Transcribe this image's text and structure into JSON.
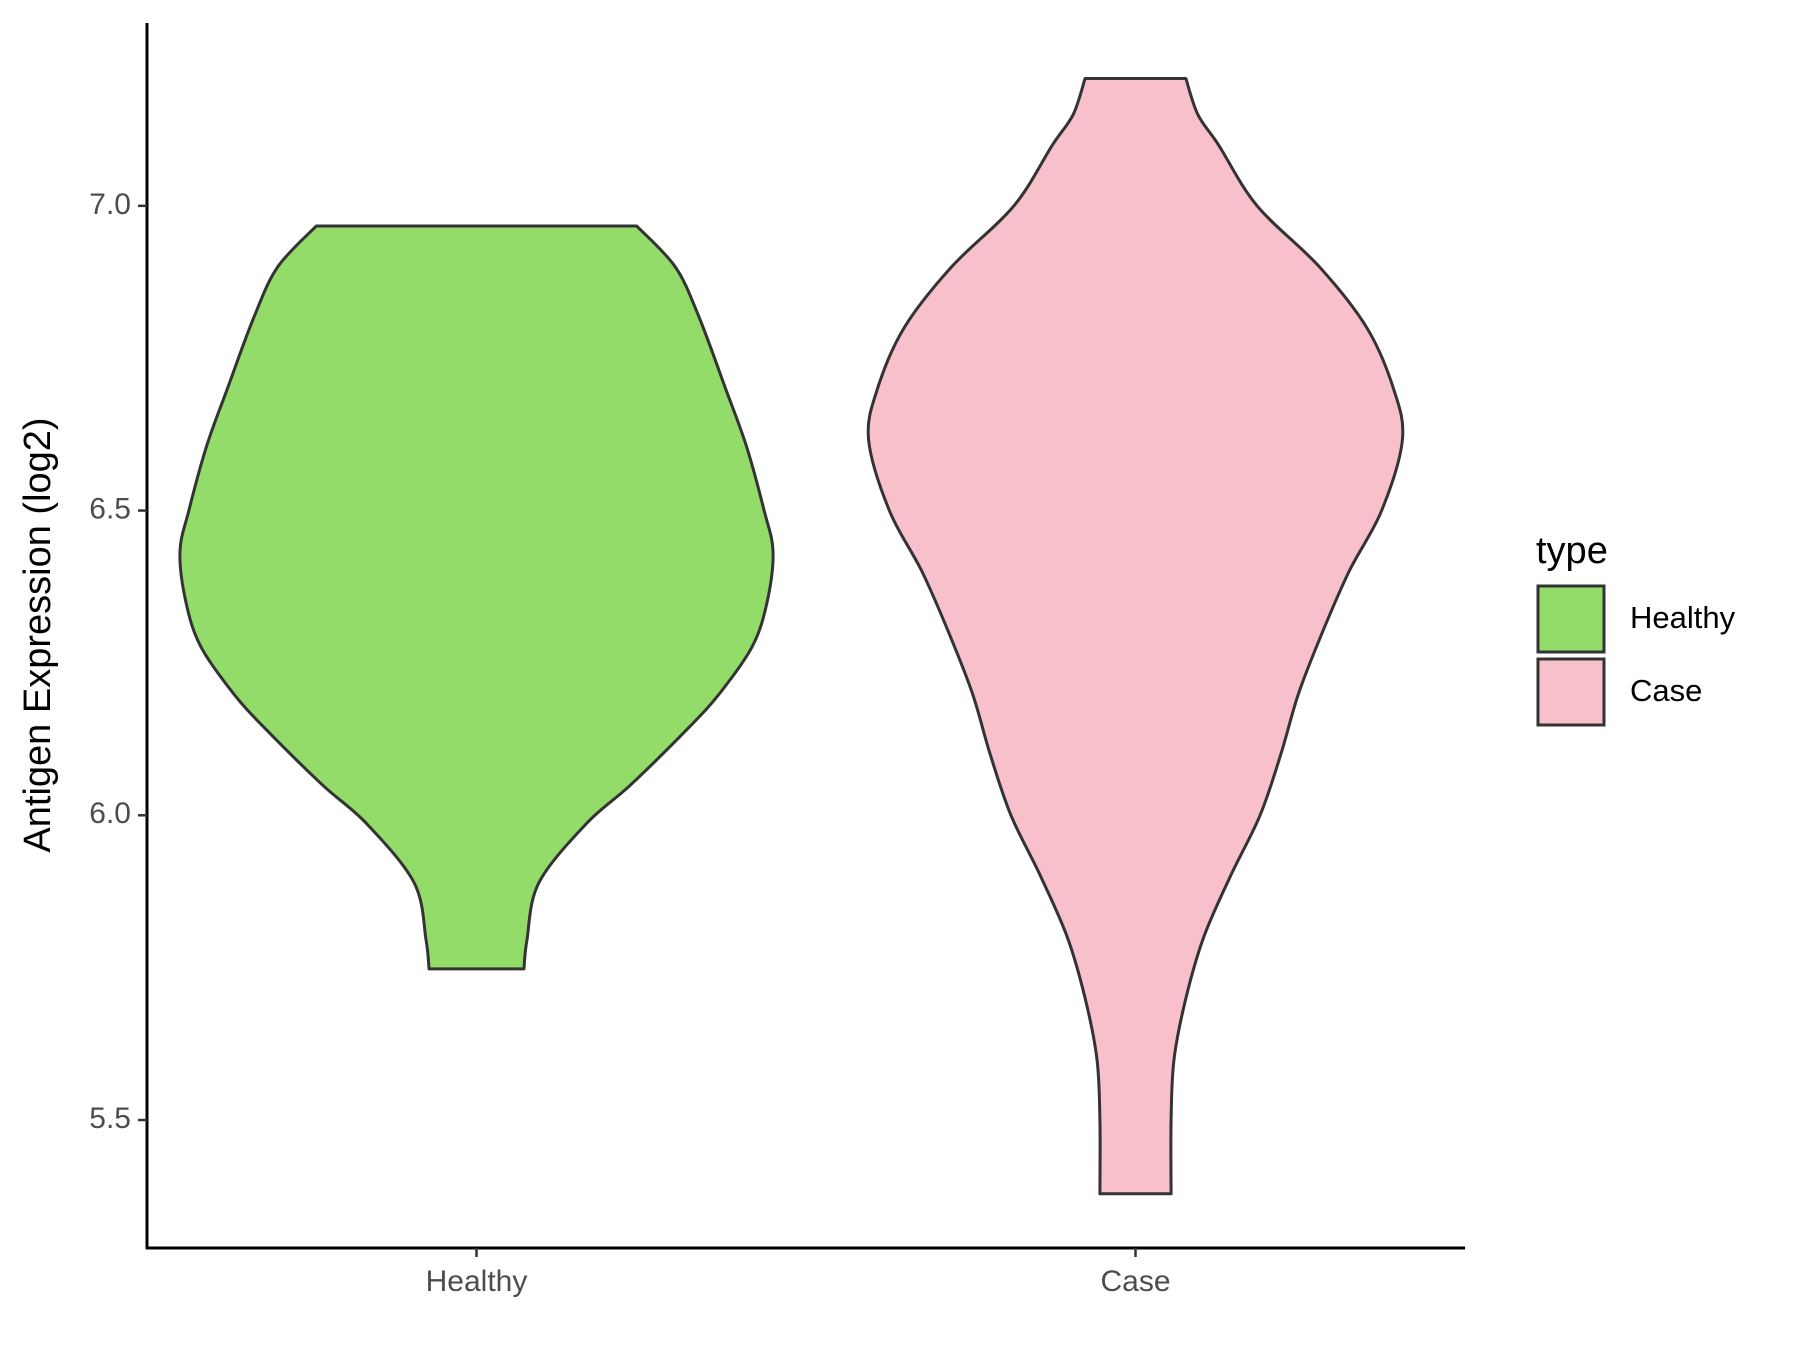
{
  "chart_data": {
    "type": "violin",
    "y_label": "Antigen Expression (log2)",
    "categories": [
      "Healthy",
      "Case"
    ],
    "legend_title": "type",
    "legend_position": "right",
    "ylim": [
      5.29,
      7.3
    ],
    "yticks": [
      5.5,
      {
        "value": 6,
        "label": "6.0"
      },
      6.5,
      {
        "value": 7,
        "label": "7.0"
      }
    ],
    "grid": false,
    "series": [
      {
        "name": "Healthy",
        "color": "#93dc6a",
        "y": [
          6.967,
          6.9,
          6.818,
          6.7,
          6.606,
          6.5,
          6.432,
          6.35,
          6.277,
          6.2,
          6.141,
          6.05,
          5.986,
          5.889,
          5.795,
          5.748
        ],
        "widths": [
          0.54,
          0.67,
          0.75,
          0.84,
          0.91,
          0.97,
          1.0,
          0.98,
          0.93,
          0.82,
          0.71,
          0.52,
          0.37,
          0.21,
          0.17,
          0.16
        ]
      },
      {
        "name": "Case",
        "color": "#f7c0cb",
        "y": [
          7.209,
          7.15,
          7.1,
          7.0,
          6.9,
          6.8,
          6.7,
          6.616,
          6.5,
          6.4,
          6.3,
          6.2,
          6.1,
          6.0,
          5.9,
          5.8,
          5.7,
          5.6,
          5.5,
          5.379
        ],
        "widths": [
          0.17,
          0.21,
          0.28,
          0.41,
          0.62,
          0.78,
          0.87,
          0.9,
          0.83,
          0.72,
          0.63,
          0.55,
          0.49,
          0.42,
          0.32,
          0.23,
          0.17,
          0.13,
          0.12,
          0.12
        ]
      }
    ]
  }
}
